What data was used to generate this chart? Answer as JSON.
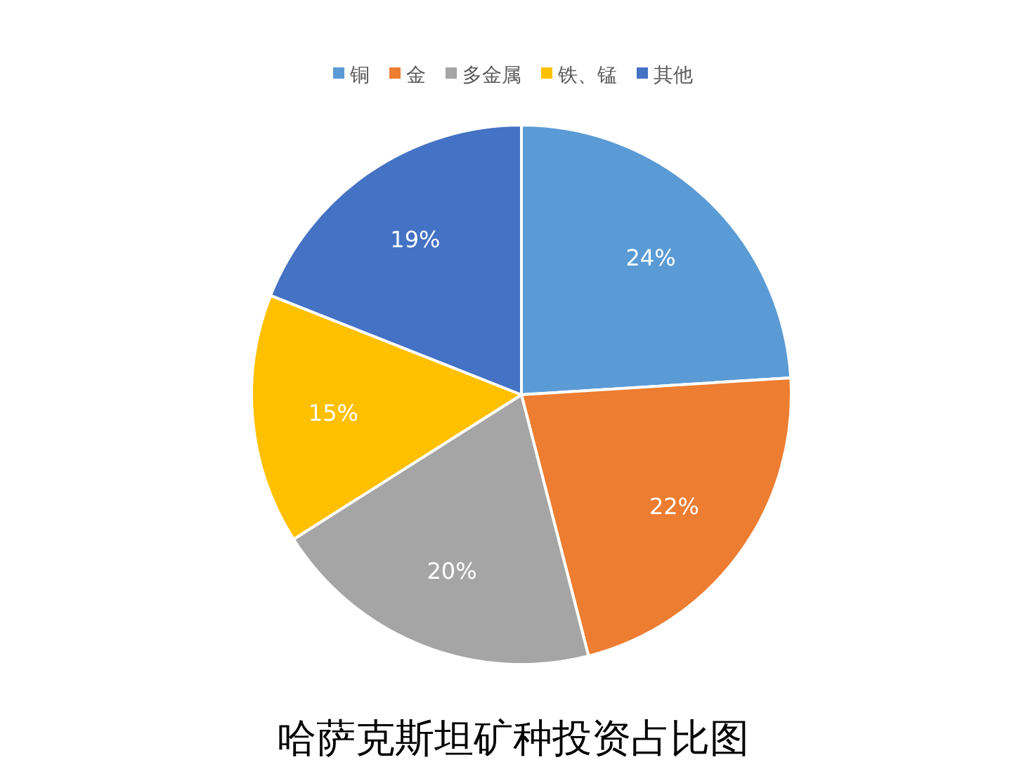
{
  "chart_data": {
    "type": "pie",
    "title": "哈萨克斯坦矿种投资占比图",
    "categories": [
      "铜",
      "金",
      "多金属",
      "铁、锰",
      "其他"
    ],
    "values": [
      24,
      22,
      20,
      15,
      19
    ],
    "colors": [
      "#5b9bd5",
      "#ed7d31",
      "#a5a5a5",
      "#ffc000",
      "#4472c4"
    ],
    "value_labels": [
      "24%",
      "22%",
      "20%",
      "15%",
      "19%"
    ],
    "legend": "top"
  }
}
